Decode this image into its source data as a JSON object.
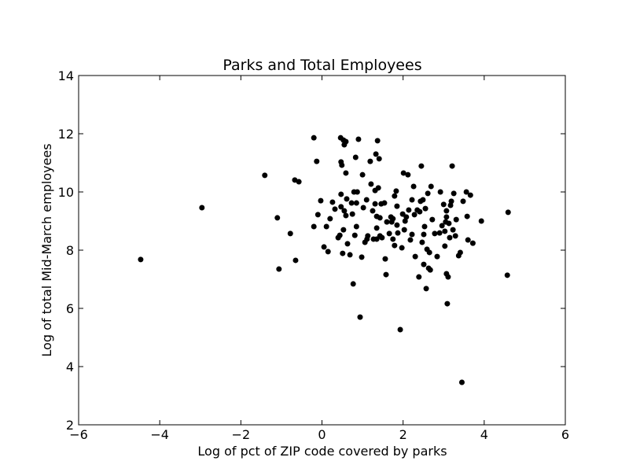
{
  "chart_data": {
    "type": "scatter",
    "title": "Parks and Total Employees",
    "x_label": "Log of pct of ZIP code covered by parks",
    "y_label": "Log of total Mid-March employees",
    "color": "#000000",
    "xlim": [
      -6,
      6
    ],
    "xticks": [
      {
        "value": -6,
        "label": "−6"
      },
      {
        "value": -4,
        "label": "−4"
      },
      {
        "value": -2,
        "label": "−2"
      },
      0,
      2,
      4,
      6
    ],
    "ylim": [
      2,
      14
    ],
    "yticks": [
      2,
      4,
      6,
      8,
      10,
      12,
      14
    ],
    "x": [
      -4.47,
      -2.96,
      -1.41,
      -1.1,
      -0.78,
      -1.06,
      -0.67,
      -0.57,
      -0.65,
      -0.2,
      -0.13,
      -0.2,
      -0.1,
      -0.03,
      0.05,
      0.11,
      0.15,
      0.2,
      0.26,
      0.32,
      0.4,
      0.44,
      0.46,
      0.47,
      0.49,
      0.53,
      0.55,
      0.59,
      0.47,
      0.47,
      0.53,
      0.55,
      0.59,
      0.51,
      0.59,
      0.61,
      0.63,
      0.69,
      0.73,
      0.75,
      0.81,
      0.77,
      0.83,
      0.79,
      0.87,
      0.85,
      0.85,
      0.9,
      0.94,
      0.98,
      1.0,
      1.02,
      1.06,
      1.1,
      1.11,
      1.13,
      1.19,
      1.21,
      1.25,
      1.27,
      1.31,
      1.31,
      1.33,
      1.35,
      1.35,
      1.35,
      1.37,
      1.39,
      1.41,
      1.43,
      1.43,
      1.46,
      1.48,
      1.54,
      1.56,
      1.58,
      1.6,
      1.66,
      1.7,
      1.72,
      1.75,
      1.75,
      1.79,
      1.79,
      1.83,
      1.85,
      1.85,
      1.87,
      1.93,
      1.97,
      1.99,
      2.01,
      2.03,
      2.05,
      2.08,
      2.12,
      2.14,
      2.18,
      2.22,
      2.22,
      2.26,
      2.28,
      2.3,
      2.35,
      2.39,
      2.41,
      2.43,
      2.45,
      2.47,
      2.49,
      2.51,
      2.51,
      2.53,
      2.55,
      2.57,
      2.59,
      2.61,
      2.63,
      2.65,
      2.67,
      2.69,
      2.72,
      2.78,
      2.84,
      2.9,
      2.92,
      2.96,
      3.0,
      3.03,
      3.03,
      3.05,
      3.07,
      3.07,
      3.07,
      3.09,
      3.11,
      3.13,
      3.15,
      3.17,
      3.19,
      3.21,
      3.23,
      3.25,
      3.29,
      3.31,
      3.37,
      3.41,
      3.45,
      3.48,
      3.56,
      3.58,
      3.6,
      3.66,
      3.72,
      3.93,
      4.59,
      4.57
    ],
    "values": [
      7.68,
      9.46,
      10.57,
      9.11,
      8.57,
      7.35,
      10.41,
      10.35,
      7.65,
      11.86,
      11.05,
      8.81,
      9.22,
      9.7,
      8.11,
      8.81,
      7.95,
      9.08,
      9.65,
      9.41,
      8.43,
      8.51,
      11.86,
      11.03,
      10.92,
      11.78,
      11.62,
      11.73,
      9.92,
      9.49,
      8.7,
      9.35,
      9.19,
      7.89,
      10.65,
      9.76,
      8.22,
      7.84,
      9.62,
      9.24,
      8.51,
      6.84,
      11.19,
      10.0,
      10.0,
      8.81,
      9.62,
      11.81,
      5.7,
      7.76,
      10.59,
      9.46,
      8.27,
      9.73,
      8.38,
      8.49,
      11.05,
      10.27,
      9.35,
      8.38,
      10.05,
      9.59,
      11.3,
      9.16,
      8.76,
      8.38,
      11.76,
      10.14,
      11.14,
      9.11,
      8.49,
      9.59,
      8.43,
      9.62,
      7.7,
      7.16,
      8.97,
      8.57,
      9.14,
      8.97,
      9.08,
      8.38,
      8.16,
      9.86,
      10.03,
      9.51,
      8.86,
      8.59,
      5.27,
      8.08,
      9.24,
      10.65,
      8.7,
      9.0,
      9.14,
      10.59,
      9.38,
      8.35,
      9.73,
      8.54,
      10.19,
      9.22,
      7.78,
      9.38,
      7.08,
      9.32,
      9.68,
      10.89,
      8.27,
      9.73,
      8.54,
      7.51,
      8.81,
      9.43,
      6.68,
      8.03,
      9.95,
      7.38,
      7.92,
      7.32,
      10.19,
      9.05,
      8.57,
      7.78,
      8.59,
      10.0,
      8.84,
      9.57,
      8.14,
      8.65,
      8.97,
      9.14,
      9.35,
      7.19,
      6.16,
      7.08,
      8.92,
      8.43,
      9.54,
      9.68,
      10.89,
      8.7,
      9.95,
      8.49,
      9.05,
      7.81,
      7.92,
      3.46,
      9.68,
      10.0,
      9.16,
      8.35,
      9.89,
      8.24,
      9.0,
      9.3,
      7.14
    ]
  }
}
